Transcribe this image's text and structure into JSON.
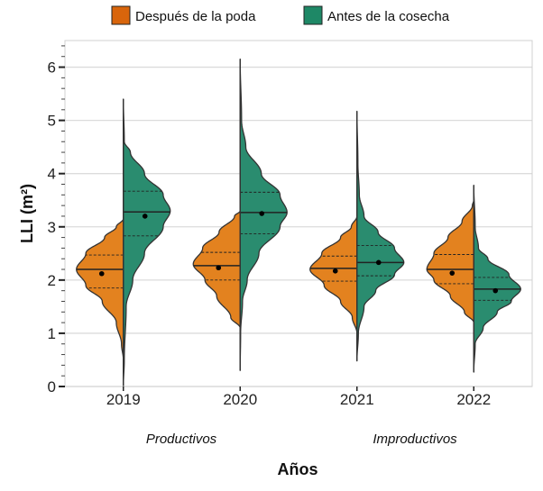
{
  "chart_data": {
    "type": "split-violin",
    "xlabel": "Años",
    "ylabel": "LLI (m²)",
    "ylim": [
      0,
      6.5
    ],
    "yticks": [
      0,
      1,
      2,
      3,
      4,
      5,
      6
    ],
    "grid": "horizontal",
    "legend_position": "top",
    "categories": [
      "2019",
      "2020",
      "2021",
      "2022"
    ],
    "group_labels": [
      {
        "label": "Productivos",
        "categories": [
          "2019",
          "2020"
        ]
      },
      {
        "label": "Improductivos",
        "categories": [
          "2021",
          "2022"
        ]
      }
    ],
    "series": [
      {
        "name": "Después de la poda",
        "color": "#E3821F",
        "legend_color": "#D8650C",
        "side": "left",
        "violins": [
          {
            "q1": 1.85,
            "median": 2.2,
            "q3": 2.47,
            "mean": 2.12,
            "density": [
              [
                0.5,
                0
              ],
              [
                0.8,
                0.04
              ],
              [
                1.2,
                0.15
              ],
              [
                1.6,
                0.45
              ],
              [
                1.9,
                0.8
              ],
              [
                2.2,
                1
              ],
              [
                2.5,
                0.8
              ],
              [
                2.8,
                0.4
              ],
              [
                3.0,
                0.15
              ],
              [
                3.15,
                0
              ]
            ]
          },
          {
            "q1": 2.0,
            "median": 2.27,
            "q3": 2.52,
            "mean": 2.23,
            "density": [
              [
                1.1,
                0
              ],
              [
                1.3,
                0.2
              ],
              [
                1.7,
                0.5
              ],
              [
                2.0,
                0.75
              ],
              [
                2.3,
                1
              ],
              [
                2.6,
                0.8
              ],
              [
                2.9,
                0.45
              ],
              [
                3.2,
                0.12
              ],
              [
                3.3,
                0
              ]
            ]
          },
          {
            "q1": 1.98,
            "median": 2.22,
            "q3": 2.45,
            "mean": 2.17,
            "density": [
              [
                1.0,
                0
              ],
              [
                1.3,
                0.1
              ],
              [
                1.6,
                0.35
              ],
              [
                1.9,
                0.7
              ],
              [
                2.2,
                1
              ],
              [
                2.5,
                0.75
              ],
              [
                2.8,
                0.35
              ],
              [
                3.0,
                0.12
              ],
              [
                3.2,
                0
              ]
            ]
          },
          {
            "q1": 1.93,
            "median": 2.2,
            "q3": 2.48,
            "mean": 2.13,
            "density": [
              [
                1.2,
                0
              ],
              [
                1.4,
                0.2
              ],
              [
                1.7,
                0.5
              ],
              [
                2.0,
                0.85
              ],
              [
                2.2,
                1
              ],
              [
                2.5,
                0.85
              ],
              [
                2.8,
                0.55
              ],
              [
                3.1,
                0.25
              ],
              [
                3.4,
                0.03
              ],
              [
                3.5,
                0
              ]
            ]
          }
        ]
      },
      {
        "name": "Antes de la cosecha",
        "color": "#2A8C6F",
        "legend_color": "#1E8866",
        "side": "right",
        "violins": [
          {
            "q1": 2.83,
            "median": 3.28,
            "q3": 3.67,
            "mean": 3.2,
            "density": [
              [
                0,
                0
              ],
              [
                0.5,
                0.02
              ],
              [
                1.5,
                0.06
              ],
              [
                2.0,
                0.2
              ],
              [
                2.5,
                0.45
              ],
              [
                3.0,
                0.85
              ],
              [
                3.3,
                1
              ],
              [
                3.6,
                0.85
              ],
              [
                4.0,
                0.45
              ],
              [
                4.4,
                0.15
              ],
              [
                4.6,
                0.02
              ],
              [
                5.4,
                0
              ]
            ]
          },
          {
            "q1": 2.87,
            "median": 3.27,
            "q3": 3.65,
            "mean": 3.25,
            "density": [
              [
                0.3,
                0
              ],
              [
                1.0,
                0.01
              ],
              [
                1.6,
                0.05
              ],
              [
                2.0,
                0.15
              ],
              [
                2.5,
                0.4
              ],
              [
                3.0,
                0.85
              ],
              [
                3.27,
                1
              ],
              [
                3.6,
                0.85
              ],
              [
                4.0,
                0.45
              ],
              [
                4.5,
                0.12
              ],
              [
                5.0,
                0.03
              ],
              [
                6.15,
                0
              ]
            ]
          },
          {
            "q1": 2.08,
            "median": 2.33,
            "q3": 2.65,
            "mean": 2.33,
            "density": [
              [
                0.48,
                0
              ],
              [
                1.0,
                0.03
              ],
              [
                1.5,
                0.15
              ],
              [
                1.8,
                0.4
              ],
              [
                2.1,
                0.8
              ],
              [
                2.33,
                1
              ],
              [
                2.6,
                0.8
              ],
              [
                2.9,
                0.45
              ],
              [
                3.2,
                0.15
              ],
              [
                3.6,
                0.05
              ],
              [
                4.2,
                0.02
              ],
              [
                5.17,
                0
              ]
            ]
          },
          {
            "q1": 1.62,
            "median": 1.83,
            "q3": 2.05,
            "mean": 1.8,
            "density": [
              [
                0.27,
                0
              ],
              [
                0.8,
                0.03
              ],
              [
                1.1,
                0.2
              ],
              [
                1.4,
                0.5
              ],
              [
                1.6,
                0.8
              ],
              [
                1.83,
                1
              ],
              [
                2.1,
                0.75
              ],
              [
                2.4,
                0.3
              ],
              [
                2.6,
                0.1
              ],
              [
                3.0,
                0.03
              ],
              [
                3.78,
                0
              ]
            ]
          }
        ]
      }
    ]
  }
}
